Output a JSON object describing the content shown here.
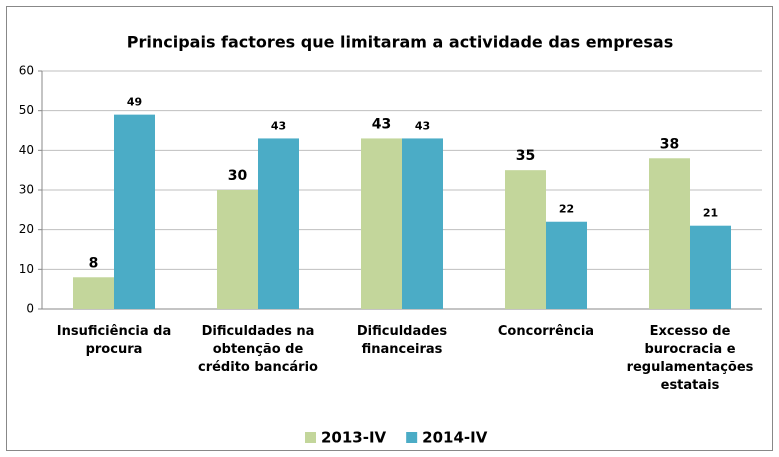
{
  "chart_data": {
    "type": "bar",
    "title": "Principais factores que limitaram a actividade das empresas",
    "categories": [
      "Insuficiência da procura",
      "Dificuldades na obtenção de crédito bancário",
      "Dificuldades financeiras",
      "Concorrência",
      "Excesso de burocracia e regulamentações estatais"
    ],
    "series": [
      {
        "name": "2013-IV",
        "color": "#c3d69b",
        "values": [
          8,
          30,
          43,
          35,
          38
        ]
      },
      {
        "name": "2014-IV",
        "color": "#4bacc6",
        "values": [
          49,
          43,
          43,
          22,
          21
        ]
      }
    ],
    "ylim": [
      0,
      60
    ],
    "yticks": [
      0,
      10,
      20,
      30,
      40,
      50,
      60
    ],
    "grid": true,
    "legend": "bottom"
  }
}
